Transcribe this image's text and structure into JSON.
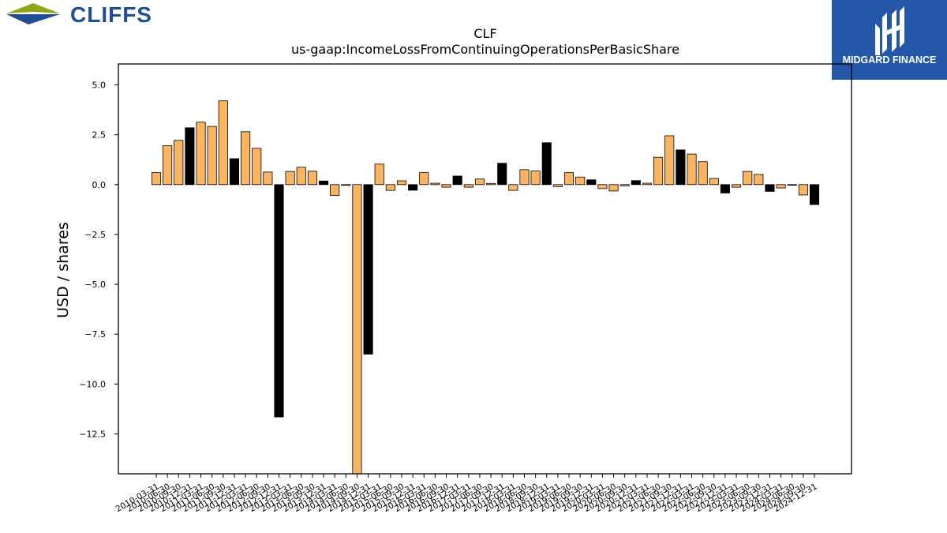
{
  "brand": {
    "left_logo_text": "CLIFFS",
    "right_logo_text": "MIDGARD FINANCE"
  },
  "colors": {
    "bar_orange": "#FDB462",
    "bar_black": "#000000",
    "logo_blue": "#1F4E96",
    "logo_green": "#8FA617",
    "badge_blue": "#2457A8"
  },
  "chart_data": {
    "type": "bar",
    "title": "CLF",
    "subtitle": "us-gaap:IncomeLossFromContinuingOperationsPerBasicShare",
    "xlabel": "",
    "ylabel": "USD / shares",
    "ylim": [
      -14.5,
      6.05
    ],
    "yticks": [
      5.0,
      2.5,
      0.0,
      -2.5,
      -5.0,
      -7.5,
      -10.0,
      -12.5
    ],
    "ytick_labels": [
      "5.0",
      "2.5",
      "0.0",
      "−2.5",
      "−5.0",
      "−7.5",
      "−10.0",
      "−12.5"
    ],
    "grid": false,
    "categories": [
      "2010-03-31",
      "2010-06-30",
      "2010-09-30",
      "2010-12-31",
      "2011-03-31",
      "2011-06-30",
      "2011-09-30",
      "2011-12-31",
      "2012-03-31",
      "2012-06-30",
      "2012-09-30",
      "2012-12-31",
      "2013-03-31",
      "2013-06-30",
      "2013-09-30",
      "2013-12-31",
      "2014-03-31",
      "2014-06-30",
      "2014-09-30",
      "2014-12-31",
      "2015-03-31",
      "2015-06-30",
      "2015-09-30",
      "2015-12-31",
      "2016-03-31",
      "2016-06-30",
      "2016-09-30",
      "2016-12-31",
      "2017-03-31",
      "2017-06-30",
      "2017-09-30",
      "2017-12-31",
      "2018-03-31",
      "2018-06-30",
      "2018-09-30",
      "2018-12-31",
      "2019-03-31",
      "2019-06-30",
      "2019-09-30",
      "2019-12-31",
      "2020-03-31",
      "2020-06-30",
      "2020-09-30",
      "2020-12-31",
      "2021-03-31",
      "2021-06-30",
      "2021-09-30",
      "2021-12-31",
      "2022-03-31",
      "2022-06-30",
      "2022-09-30",
      "2022-12-31",
      "2023-03-31",
      "2023-06-30",
      "2023-09-30",
      "2023-12-31",
      "2024-03-31",
      "2024-06-30",
      "2024-09-30",
      "2024-12-31"
    ],
    "values": [
      0.6,
      1.95,
      2.22,
      2.85,
      3.13,
      2.92,
      4.2,
      1.3,
      2.65,
      1.82,
      0.63,
      -11.65,
      0.66,
      0.87,
      0.67,
      0.18,
      -0.55,
      -0.04,
      -14.6,
      -8.5,
      1.03,
      -0.29,
      0.19,
      -0.28,
      0.6,
      0.07,
      -0.13,
      0.43,
      -0.13,
      0.28,
      0.06,
      1.07,
      -0.29,
      0.75,
      0.68,
      2.1,
      -0.1,
      0.6,
      0.38,
      0.24,
      -0.2,
      -0.32,
      -0.06,
      0.2,
      0.07,
      1.37,
      2.45,
      1.74,
      1.53,
      1.15,
      0.31,
      -0.42,
      -0.13,
      0.66,
      0.51,
      -0.34,
      -0.17,
      -0.02,
      -0.52,
      -1.0
    ],
    "bar_colors": [
      "orange",
      "orange",
      "orange",
      "black",
      "orange",
      "orange",
      "orange",
      "black",
      "orange",
      "orange",
      "orange",
      "black",
      "orange",
      "orange",
      "orange",
      "black",
      "orange",
      "orange",
      "orange",
      "black",
      "orange",
      "orange",
      "orange",
      "black",
      "orange",
      "orange",
      "orange",
      "black",
      "orange",
      "orange",
      "orange",
      "black",
      "orange",
      "orange",
      "orange",
      "black",
      "orange",
      "orange",
      "orange",
      "black",
      "orange",
      "orange",
      "orange",
      "black",
      "orange",
      "orange",
      "orange",
      "black",
      "orange",
      "orange",
      "orange",
      "black",
      "orange",
      "orange",
      "orange",
      "black",
      "orange",
      "orange",
      "orange",
      "black"
    ]
  }
}
